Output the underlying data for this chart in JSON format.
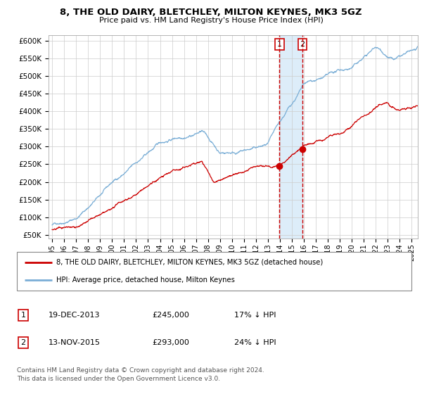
{
  "title": "8, THE OLD DAIRY, BLETCHLEY, MILTON KEYNES, MK3 5GZ",
  "subtitle": "Price paid vs. HM Land Registry's House Price Index (HPI)",
  "legend_line1": "8, THE OLD DAIRY, BLETCHLEY, MILTON KEYNES, MK3 5GZ (detached house)",
  "legend_line2": "HPI: Average price, detached house, Milton Keynes",
  "sale1_date": "19-DEC-2013",
  "sale1_price": 245000,
  "sale1_pct": "17% ↓ HPI",
  "sale2_date": "13-NOV-2015",
  "sale2_price": 293000,
  "sale2_pct": "24% ↓ HPI",
  "footer": "Contains HM Land Registry data © Crown copyright and database right 2024.\nThis data is licensed under the Open Government Licence v3.0.",
  "red_color": "#cc0000",
  "blue_color": "#7aaed6",
  "background_color": "#ffffff",
  "grid_color": "#cccccc",
  "yticks": [
    50000,
    100000,
    150000,
    200000,
    250000,
    300000,
    350000,
    400000,
    450000,
    500000,
    550000,
    600000
  ],
  "start_year": 1995.0,
  "end_year": 2025.5,
  "sale1_x": 2013.96,
  "sale2_x": 2015.87
}
